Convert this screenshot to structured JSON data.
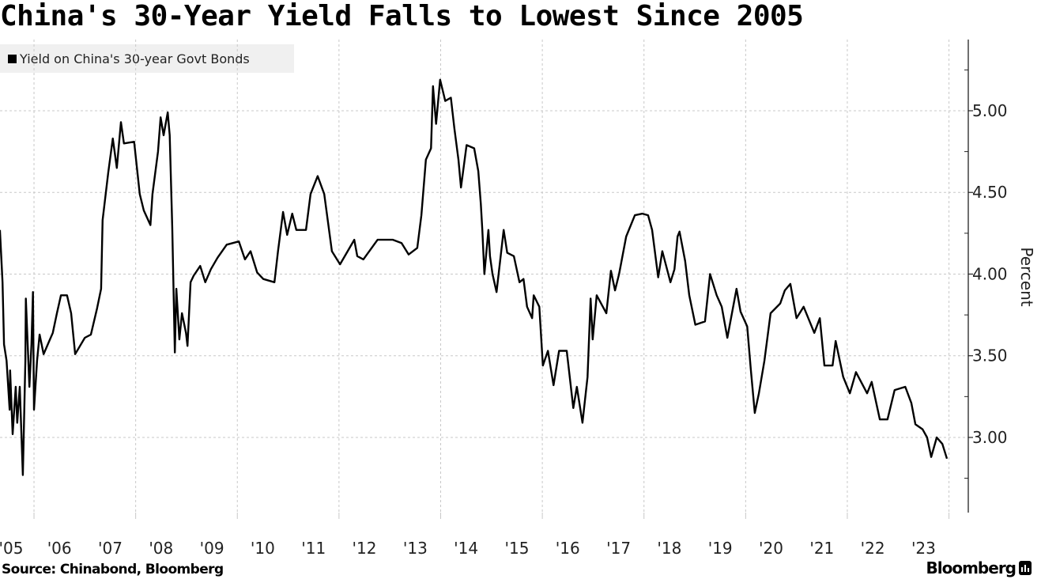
{
  "title": "China's 30-Year Yield Falls to Lowest Since 2005",
  "legend": [
    "Yield on China's 30-year Govt Bonds"
  ],
  "source": "Source: Chinabond, Bloomberg",
  "logo_text": "Bloomberg",
  "colors": {
    "line": "#000000",
    "grid": "#c8c8c8",
    "legend_bg": "#f0f0f0"
  },
  "chart_data": {
    "type": "line",
    "title": "China's 30-Year Yield Falls to Lowest Since 2005",
    "xlabel": "",
    "ylabel": "Percent",
    "y_axis_side": "right",
    "ylim": [
      2.55,
      5.45
    ],
    "xlim": [
      2005.33,
      2024.0
    ],
    "yticks": [
      3.0,
      3.5,
      4.0,
      4.5,
      5.0
    ],
    "ytick_labels": [
      "3.00",
      "3.50",
      "4.00",
      "4.50",
      "5.00"
    ],
    "xtick_labels": [
      "'05",
      "'06",
      "'07",
      "'08",
      "'09",
      "'10",
      "'11",
      "'12",
      "'13",
      "'14",
      "'15",
      "'16",
      "'17",
      "'18",
      "'19",
      "'20",
      "'21",
      "'22",
      "'23"
    ],
    "xtick_years": [
      2005,
      2006,
      2007,
      2008,
      2009,
      2010,
      2011,
      2012,
      2013,
      2014,
      2015,
      2016,
      2017,
      2018,
      2019,
      2020,
      2021,
      2022,
      2023
    ],
    "grid": true,
    "legend_position": "top-left",
    "series": [
      {
        "name": "Yield on China's 30-year Govt Bonds",
        "x": [
          2005.33,
          2005.38,
          2005.41,
          2005.46,
          2005.52,
          2005.53,
          2005.58,
          2005.64,
          2005.67,
          2005.72,
          2005.78,
          2005.83,
          2005.84,
          2005.91,
          2005.95,
          2005.98,
          2006.0,
          2006.06,
          2006.11,
          2006.19,
          2006.3,
          2006.37,
          2006.45,
          2006.53,
          2006.65,
          2006.73,
          2006.81,
          2007.0,
          2007.12,
          2007.24,
          2007.32,
          2007.35,
          2007.46,
          2007.55,
          2007.63,
          2007.71,
          2007.77,
          2007.97,
          2008.08,
          2008.16,
          2008.29,
          2008.33,
          2008.44,
          2008.49,
          2008.55,
          2008.63,
          2008.67,
          2008.72,
          2008.77,
          2008.8,
          2008.86,
          2008.91,
          2008.99,
          2009.02,
          2009.08,
          2009.14,
          2009.27,
          2009.37,
          2009.48,
          2009.61,
          2009.79,
          2010.03,
          2010.15,
          2010.26,
          2010.39,
          2010.51,
          2010.73,
          2010.8,
          2010.9,
          2010.98,
          2011.08,
          2011.16,
          2011.35,
          2011.44,
          2011.58,
          2011.71,
          2011.86,
          2012.02,
          2012.17,
          2012.3,
          2012.36,
          2012.48,
          2012.76,
          2013.06,
          2013.23,
          2013.37,
          2013.54,
          2013.62,
          2013.71,
          2013.81,
          2013.85,
          2013.91,
          2013.99,
          2014.09,
          2014.2,
          2014.27,
          2014.35,
          2014.4,
          2014.51,
          2014.66,
          2014.74,
          2014.79,
          2014.82,
          2014.86,
          2014.94,
          2014.97,
          2015.02,
          2015.1,
          2015.24,
          2015.31,
          2015.44,
          2015.55,
          2015.63,
          2015.7,
          2015.8,
          2015.83,
          2015.94,
          2016.01,
          2016.11,
          2016.22,
          2016.33,
          2016.48,
          2016.61,
          2016.68,
          2016.79,
          2016.89,
          2016.95,
          2016.99,
          2017.07,
          2017.26,
          2017.35,
          2017.43,
          2017.51,
          2017.65,
          2017.82,
          2017.97,
          2018.08,
          2018.16,
          2018.28,
          2018.36,
          2018.42,
          2018.52,
          2018.6,
          2018.66,
          2018.7,
          2018.81,
          2018.89,
          2019.01,
          2019.2,
          2019.3,
          2019.43,
          2019.53,
          2019.64,
          2019.82,
          2019.9,
          2020.03,
          2020.1,
          2020.18,
          2020.26,
          2020.37,
          2020.49,
          2020.68,
          2020.77,
          2020.88,
          2021.0,
          2021.14,
          2021.35,
          2021.46,
          2021.55,
          2021.71,
          2021.77,
          2021.92,
          2022.05,
          2022.17,
          2022.39,
          2022.48,
          2022.64,
          2022.79,
          2022.93,
          2023.14,
          2023.26,
          2023.34,
          2023.48,
          2023.57,
          2023.65,
          2023.76,
          2023.87,
          2023.96
        ],
        "y": [
          4.27,
          3.95,
          3.57,
          3.47,
          3.17,
          3.41,
          3.02,
          3.31,
          3.09,
          3.31,
          2.77,
          3.47,
          3.85,
          3.31,
          3.57,
          3.89,
          3.17,
          3.47,
          3.63,
          3.51,
          3.59,
          3.64,
          3.76,
          3.87,
          3.87,
          3.76,
          3.51,
          3.61,
          3.63,
          3.79,
          3.91,
          4.33,
          4.62,
          4.83,
          4.65,
          4.93,
          4.8,
          4.81,
          4.49,
          4.39,
          4.3,
          4.49,
          4.75,
          4.96,
          4.85,
          4.99,
          4.85,
          4.29,
          3.52,
          3.91,
          3.6,
          3.76,
          3.64,
          3.56,
          3.95,
          3.99,
          4.05,
          3.95,
          4.03,
          4.1,
          4.18,
          4.2,
          4.09,
          4.14,
          4.01,
          3.97,
          3.95,
          4.14,
          4.38,
          4.24,
          4.37,
          4.27,
          4.27,
          4.49,
          4.6,
          4.49,
          4.14,
          4.06,
          4.14,
          4.21,
          4.11,
          4.09,
          4.21,
          4.21,
          4.19,
          4.12,
          4.16,
          4.36,
          4.7,
          4.77,
          5.15,
          4.92,
          5.19,
          5.06,
          5.08,
          4.89,
          4.7,
          4.53,
          4.79,
          4.77,
          4.63,
          4.43,
          4.27,
          4.0,
          4.27,
          4.11,
          4.0,
          3.89,
          4.27,
          4.13,
          4.11,
          3.95,
          3.97,
          3.8,
          3.73,
          3.87,
          3.8,
          3.44,
          3.53,
          3.32,
          3.53,
          3.53,
          3.18,
          3.31,
          3.09,
          3.37,
          3.85,
          3.6,
          3.87,
          3.76,
          4.02,
          3.9,
          4.0,
          4.23,
          4.36,
          4.37,
          4.36,
          4.27,
          3.98,
          4.14,
          4.07,
          3.95,
          4.03,
          4.23,
          4.26,
          4.08,
          3.87,
          3.69,
          3.71,
          4.0,
          3.87,
          3.8,
          3.61,
          3.91,
          3.77,
          3.68,
          3.42,
          3.15,
          3.27,
          3.47,
          3.76,
          3.82,
          3.9,
          3.94,
          3.73,
          3.8,
          3.64,
          3.73,
          3.44,
          3.44,
          3.59,
          3.37,
          3.27,
          3.4,
          3.27,
          3.34,
          3.11,
          3.11,
          3.29,
          3.31,
          3.21,
          3.08,
          3.05,
          3.0,
          2.88,
          3.0,
          2.96,
          2.87
        ]
      }
    ]
  }
}
